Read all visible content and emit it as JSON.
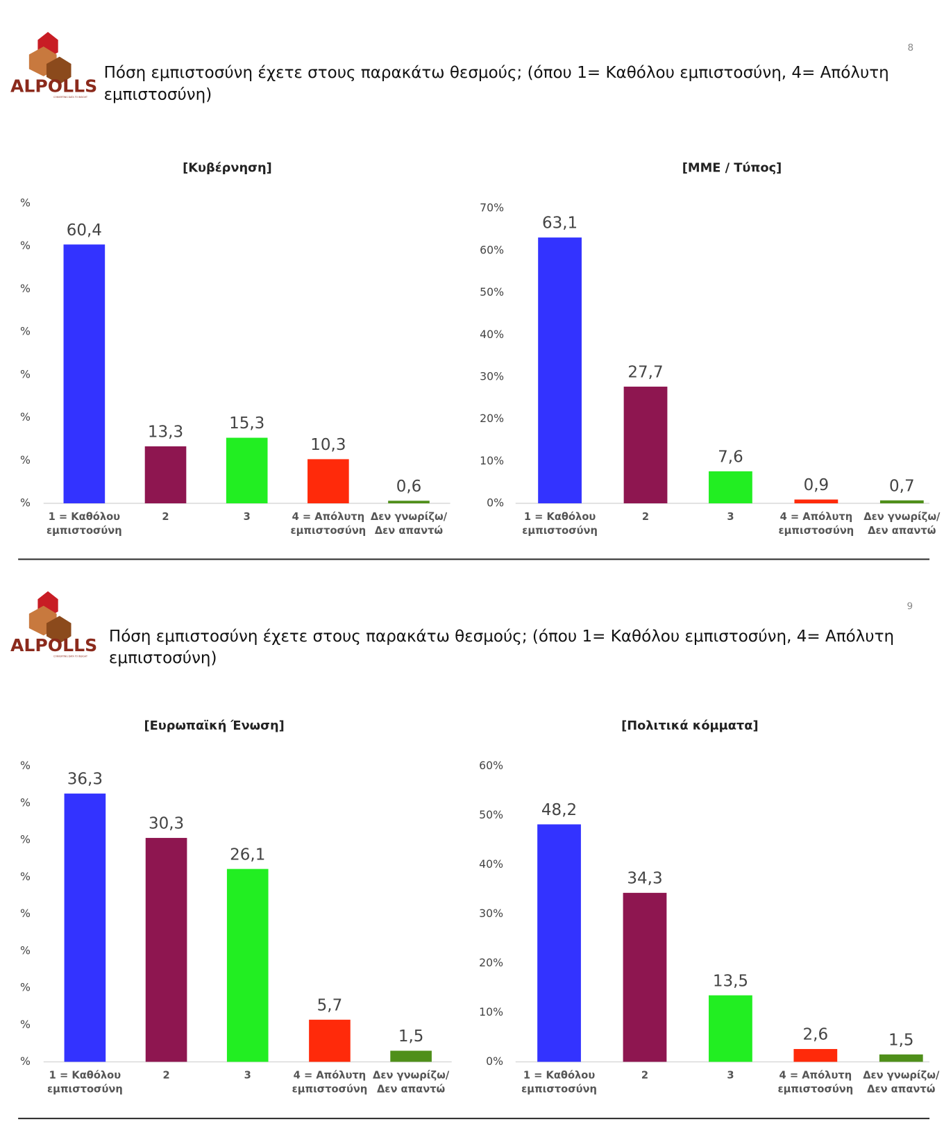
{
  "slides": [
    {
      "page_number": "8",
      "logo": "ALPOLLS",
      "tagline": "CONVERTING DATA TO INSIGHT",
      "question": "Πόση εμπιστοσύνη έχετε στους παρακάτω θεσμούς; (όπου 1= Καθόλου εμπιστοσύνη, 4= Απόλυτη εμπιστοσύνη)"
    },
    {
      "page_number": "9",
      "logo": "ALPOLLS",
      "tagline": "CONVERTING DATA TO INSIGHT",
      "question": "Πόση εμπιστοσύνη έχετε στους παρακάτω θεσμούς; (όπου 1= Καθόλου εμπιστοσύνη, 4= Απόλυτη εμπιστοσύνη)"
    }
  ],
  "chart_data": [
    {
      "type": "bar",
      "title": "[Κυβέρνηση]",
      "categories": [
        "1 = Καθόλου εμπιστοσύνη",
        "2",
        "3",
        "4 = Απόλυτη εμπιστοσύνη",
        "Δεν γνωρίζω/Δεν απαντώ"
      ],
      "values": [
        60.4,
        13.3,
        15.3,
        10.3,
        0.6
      ],
      "value_labels": [
        "60,4",
        "13,3",
        "15,3",
        "10,3",
        "0,6"
      ],
      "colors": [
        "#3333ff",
        "#8e1650",
        "#22ee22",
        "#ff2a0a",
        "#4f8f1a"
      ],
      "ylim": [
        0,
        70
      ],
      "yticks": [
        {
          "value": 0,
          "label": "%"
        },
        {
          "value": 10,
          "label": "%"
        },
        {
          "value": 20,
          "label": "%"
        },
        {
          "value": 30,
          "label": "%"
        },
        {
          "value": 40,
          "label": "%"
        },
        {
          "value": 50,
          "label": "%"
        },
        {
          "value": 60,
          "label": "%"
        },
        {
          "value": 70,
          "label": "%"
        }
      ],
      "grid": false
    },
    {
      "type": "bar",
      "title": "[ΜΜΕ / Τύπος]",
      "categories": [
        "1 = Καθόλου εμπιστοσύνη",
        "2",
        "3",
        "4 = Απόλυτη εμπιστοσύνη",
        "Δεν γνωρίζω/Δεν απαντώ"
      ],
      "values": [
        63.1,
        27.7,
        7.6,
        0.9,
        0.7
      ],
      "value_labels": [
        "63,1",
        "27,7",
        "7,6",
        "0,9",
        "0,7"
      ],
      "colors": [
        "#3333ff",
        "#8e1650",
        "#22ee22",
        "#ff2a0a",
        "#4f8f1a"
      ],
      "ylim": [
        0,
        70
      ],
      "yticks": [
        {
          "value": 0,
          "label": "0%"
        },
        {
          "value": 10,
          "label": "10%"
        },
        {
          "value": 20,
          "label": "20%"
        },
        {
          "value": 30,
          "label": "30%"
        },
        {
          "value": 40,
          "label": "40%"
        },
        {
          "value": 50,
          "label": "50%"
        },
        {
          "value": 60,
          "label": "60%"
        },
        {
          "value": 70,
          "label": "70%"
        }
      ],
      "grid": false
    },
    {
      "type": "bar",
      "title": "[Ευρωπαϊκή Ένωση]",
      "categories": [
        "1 = Καθόλου εμπιστοσύνη",
        "2",
        "3",
        "4 = Απόλυτη εμπιστοσύνη",
        "Δεν γνωρίζω/Δεν απαντώ"
      ],
      "values": [
        36.3,
        30.3,
        26.1,
        5.7,
        1.5
      ],
      "value_labels": [
        "36,3",
        "30,3",
        "26,1",
        "5,7",
        "1,5"
      ],
      "colors": [
        "#3333ff",
        "#8e1650",
        "#22ee22",
        "#ff2a0a",
        "#4f8f1a"
      ],
      "ylim": [
        0,
        40
      ],
      "yticks": [
        {
          "value": 0,
          "label": "%"
        },
        {
          "value": 5,
          "label": "%"
        },
        {
          "value": 10,
          "label": "%"
        },
        {
          "value": 15,
          "label": "%"
        },
        {
          "value": 20,
          "label": "%"
        },
        {
          "value": 25,
          "label": "%"
        },
        {
          "value": 30,
          "label": "%"
        },
        {
          "value": 35,
          "label": "%"
        },
        {
          "value": 40,
          "label": "%"
        }
      ],
      "grid": false
    },
    {
      "type": "bar",
      "title": "[Πολιτικά κόμματα]",
      "categories": [
        "1 = Καθόλου εμπιστοσύνη",
        "2",
        "3",
        "4 = Απόλυτη εμπιστοσύνη",
        "Δεν γνωρίζω/Δεν απαντώ"
      ],
      "values": [
        48.2,
        34.3,
        13.5,
        2.6,
        1.5
      ],
      "value_labels": [
        "48,2",
        "34,3",
        "13,5",
        "2,6",
        "1,5"
      ],
      "colors": [
        "#3333ff",
        "#8e1650",
        "#22ee22",
        "#ff2a0a",
        "#4f8f1a"
      ],
      "ylim": [
        0,
        60
      ],
      "yticks": [
        {
          "value": 0,
          "label": "0%"
        },
        {
          "value": 10,
          "label": "10%"
        },
        {
          "value": 20,
          "label": "20%"
        },
        {
          "value": 30,
          "label": "30%"
        },
        {
          "value": 40,
          "label": "40%"
        },
        {
          "value": 50,
          "label": "50%"
        },
        {
          "value": 60,
          "label": "60%"
        }
      ],
      "grid": false
    }
  ]
}
